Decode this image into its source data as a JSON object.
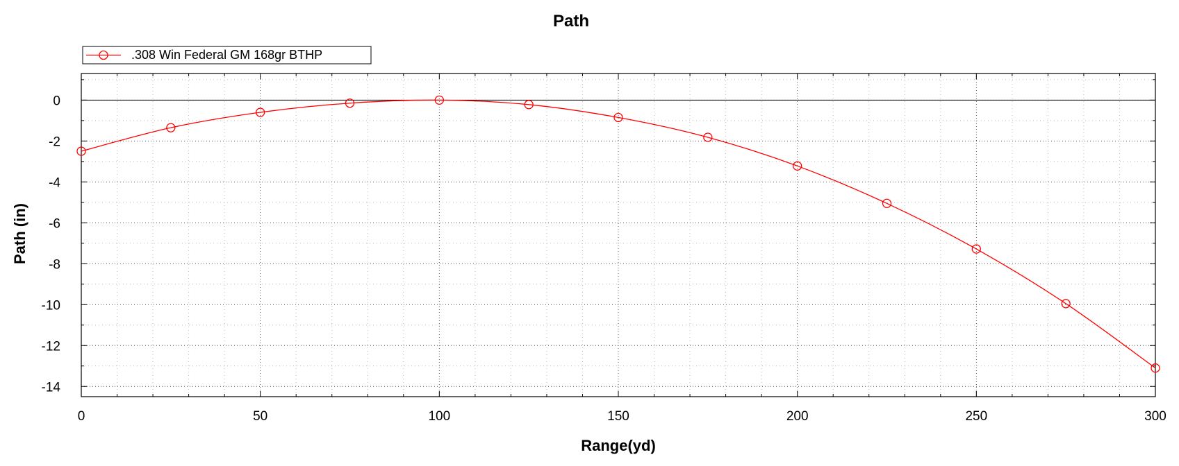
{
  "chart_data": {
    "type": "line",
    "title": "Path",
    "xlabel": "Range(yd)",
    "ylabel": "Path (in)",
    "xlim": [
      0,
      300
    ],
    "ylim": [
      -14.5,
      1.3
    ],
    "xticks": [
      0,
      50,
      100,
      150,
      200,
      250,
      300
    ],
    "yticks": [
      0,
      -2,
      -4,
      -6,
      -8,
      -10,
      -12,
      -14
    ],
    "grid": true,
    "legend_position": "top-left",
    "zero_line": true,
    "series": [
      {
        "name": ".308 Win Federal GM 168gr BTHP",
        "color": "#ff0000",
        "marker": "circle-open",
        "x": [
          0,
          25,
          50,
          75,
          100,
          125,
          150,
          175,
          200,
          225,
          250,
          275,
          300
        ],
        "y": [
          -2.5,
          -1.35,
          -0.6,
          -0.15,
          0.0,
          -0.22,
          -0.85,
          -1.82,
          -3.22,
          -5.05,
          -7.28,
          -9.95,
          -13.1
        ]
      }
    ]
  }
}
